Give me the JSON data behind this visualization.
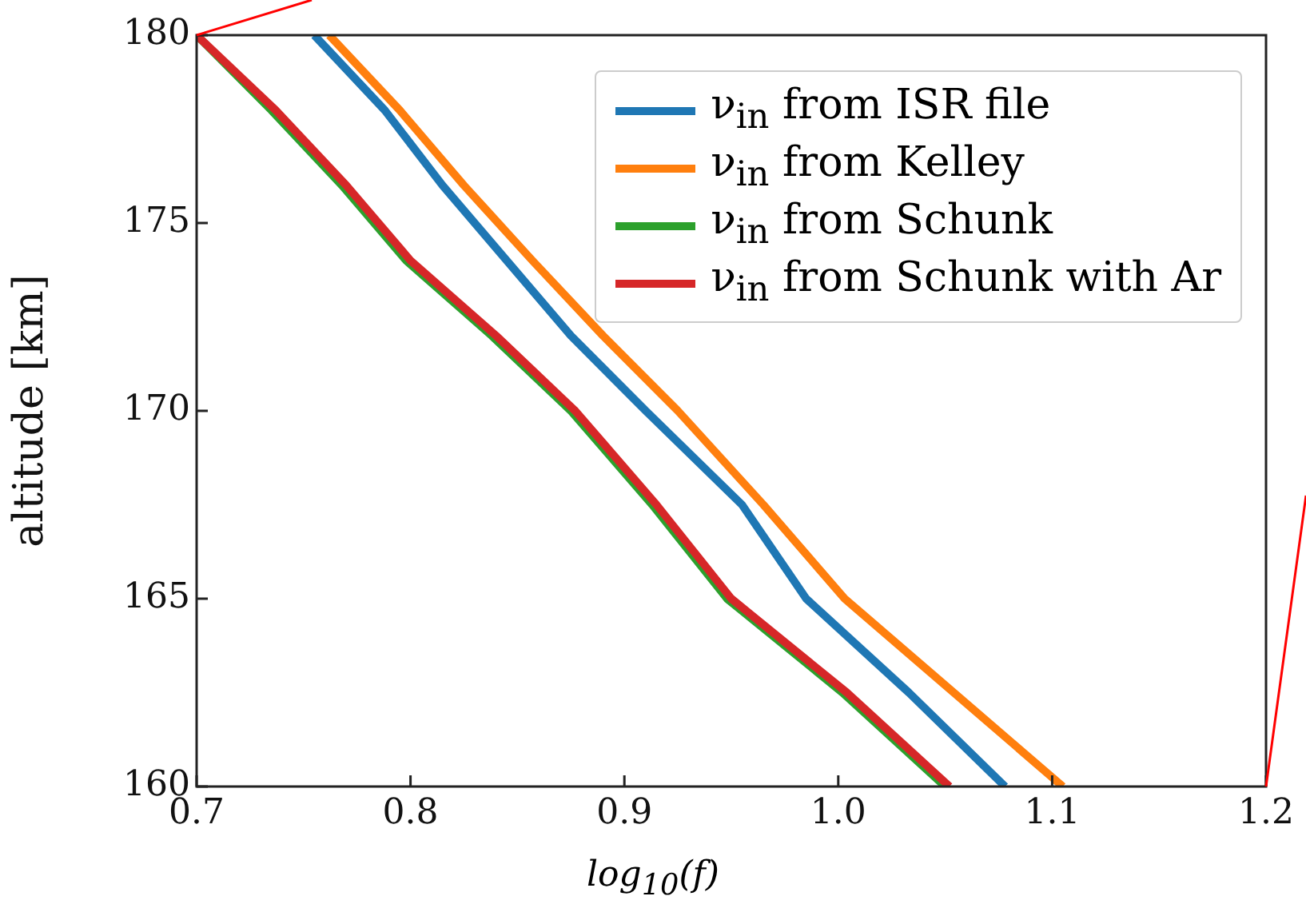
{
  "chart_data": {
    "type": "line",
    "xlabel": "log$_{10}$(f)",
    "ylabel": "altitude [km]",
    "xlim": [
      0.7,
      1.2
    ],
    "xticks": [
      {
        "value": 0.7,
        "label": "0.7"
      },
      {
        "value": 0.8,
        "label": "0.8"
      },
      {
        "value": 0.9,
        "label": "0.9"
      },
      {
        "value": 1.0,
        "label": "1.0"
      },
      {
        "value": 1.1,
        "label": "1.1"
      },
      {
        "value": 1.2,
        "label": "1.2"
      }
    ],
    "ylim": [
      160,
      180
    ],
    "yticks": [
      160,
      165,
      170,
      175,
      180
    ],
    "grid": false,
    "legend": "top right",
    "marker": "none",
    "line_style": "solid",
    "series": [
      {
        "name": "ν$_{in}$ from ISR file",
        "color": "#1f77b4",
        "x": [
          0.755,
          0.788,
          0.815,
          0.845,
          0.875,
          0.91,
          0.955,
          0.985,
          1.033,
          1.078
        ],
        "values": [
          180,
          178,
          176,
          174,
          172,
          170,
          167.5,
          165,
          162.5,
          160
        ]
      },
      {
        "name": "ν$_{in}$ from Kelley",
        "color": "#ff7f0e",
        "x": [
          0.762,
          0.795,
          0.825,
          0.857,
          0.89,
          0.925,
          0.965,
          1.003,
          1.054,
          1.105
        ],
        "values": [
          180,
          178,
          176,
          174,
          172,
          170,
          167.5,
          165,
          162.5,
          160
        ]
      },
      {
        "name": "ν$_{in}$ from Schunk",
        "color": "#2ca02c",
        "x": [
          0.7,
          0.735,
          0.768,
          0.798,
          0.838,
          0.875,
          0.913,
          0.948,
          1.002,
          1.05
        ],
        "values": [
          180,
          178,
          176,
          174,
          172,
          170,
          167.5,
          165,
          162.5,
          160
        ]
      },
      {
        "name": "ν$_{in}$ from Schunk with Ar",
        "color": "#d62728",
        "x": [
          0.7,
          0.737,
          0.77,
          0.8,
          0.84,
          0.877,
          0.915,
          0.95,
          1.004,
          1.052
        ],
        "values": [
          180,
          178,
          176,
          174,
          172,
          170,
          167.5,
          165,
          162.5,
          160
        ]
      }
    ]
  }
}
